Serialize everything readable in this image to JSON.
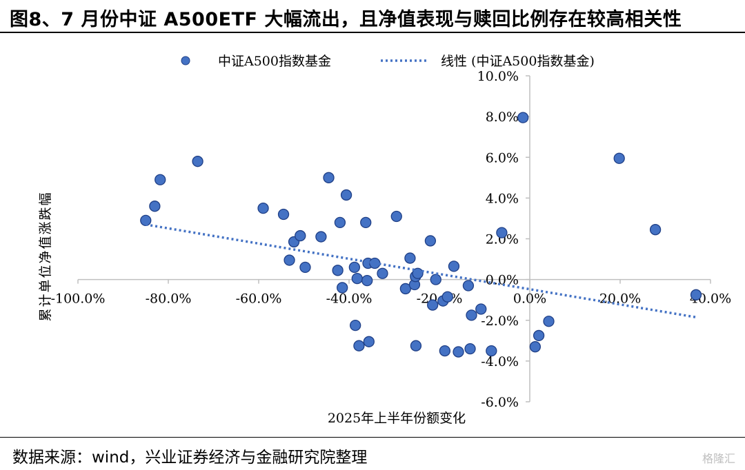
{
  "header": {
    "title": "图8、7 月份中证 A500ETF 大幅流出，且净值表现与赎回比例存在较高相关性"
  },
  "footer": {
    "source": "数据来源：wind，兴业证券经济与金融研究院整理",
    "watermark": "格隆汇"
  },
  "chart_data": {
    "type": "scatter",
    "title": "",
    "xlabel": "2025年上半年份额变化",
    "ylabel": "累计单位净值涨跌幅",
    "xlim": [
      -100,
      40
    ],
    "ylim": [
      -6,
      10
    ],
    "x_ticks": [
      "-100.0%",
      "-80.0%",
      "-60.0%",
      "-40.0%",
      "-20.0%",
      "0.0%",
      "20.0%",
      "40.0%"
    ],
    "y_ticks": [
      "-6.0%",
      "-4.0%",
      "-2.0%",
      "0.0%",
      "2.0%",
      "4.0%",
      "6.0%",
      "8.0%",
      "10.0%"
    ],
    "legend_position": "top",
    "grid": false,
    "colors": {
      "point_fill": "#4472c4",
      "point_stroke": "#1f3f86",
      "trend": "#4472c4"
    },
    "series": [
      {
        "name": "中证A500指数基金",
        "points": [
          {
            "x": -85.0,
            "y": 2.9
          },
          {
            "x": -83.0,
            "y": 3.6
          },
          {
            "x": -81.8,
            "y": 4.9
          },
          {
            "x": -73.5,
            "y": 5.8
          },
          {
            "x": -59.0,
            "y": 3.5
          },
          {
            "x": -54.5,
            "y": 3.2
          },
          {
            "x": -53.2,
            "y": 0.95
          },
          {
            "x": -52.2,
            "y": 1.85
          },
          {
            "x": -50.8,
            "y": 2.15
          },
          {
            "x": -49.7,
            "y": 0.6
          },
          {
            "x": -46.2,
            "y": 2.1
          },
          {
            "x": -44.5,
            "y": 5.0
          },
          {
            "x": -42.5,
            "y": 0.45
          },
          {
            "x": -42.0,
            "y": 2.8
          },
          {
            "x": -41.5,
            "y": -0.4
          },
          {
            "x": -40.6,
            "y": 4.15
          },
          {
            "x": -38.8,
            "y": 0.6
          },
          {
            "x": -38.6,
            "y": -2.25
          },
          {
            "x": -38.2,
            "y": 0.05
          },
          {
            "x": -37.8,
            "y": -3.25
          },
          {
            "x": -36.3,
            "y": 2.8
          },
          {
            "x": -36.0,
            "y": -0.05
          },
          {
            "x": -35.8,
            "y": 0.8
          },
          {
            "x": -35.6,
            "y": -3.05
          },
          {
            "x": -34.3,
            "y": 0.8
          },
          {
            "x": -32.6,
            "y": 0.3
          },
          {
            "x": -29.5,
            "y": 3.1
          },
          {
            "x": -27.5,
            "y": -0.45
          },
          {
            "x": -26.5,
            "y": 1.05
          },
          {
            "x": -25.5,
            "y": -0.25
          },
          {
            "x": -25.3,
            "y": 0.15
          },
          {
            "x": -25.2,
            "y": -3.25
          },
          {
            "x": -24.8,
            "y": 0.3
          },
          {
            "x": -22.0,
            "y": 1.9
          },
          {
            "x": -21.5,
            "y": -1.25
          },
          {
            "x": -20.8,
            "y": 0.0
          },
          {
            "x": -19.2,
            "y": -1.05
          },
          {
            "x": -18.8,
            "y": -3.5
          },
          {
            "x": -18.2,
            "y": -0.85
          },
          {
            "x": -16.8,
            "y": 0.65
          },
          {
            "x": -15.8,
            "y": -3.55
          },
          {
            "x": -13.6,
            "y": -0.3
          },
          {
            "x": -13.2,
            "y": -3.4
          },
          {
            "x": -12.9,
            "y": -1.75
          },
          {
            "x": -10.8,
            "y": -1.45
          },
          {
            "x": -8.5,
            "y": -3.5
          },
          {
            "x": -6.2,
            "y": 2.3
          },
          {
            "x": -1.5,
            "y": 7.95
          },
          {
            "x": 1.2,
            "y": -3.3
          },
          {
            "x": 2.0,
            "y": -2.75
          },
          {
            "x": 4.2,
            "y": -2.05
          },
          {
            "x": 19.8,
            "y": 5.95
          },
          {
            "x": 27.8,
            "y": 2.45
          },
          {
            "x": 36.8,
            "y": -0.75
          }
        ]
      },
      {
        "name": "线性 (中证A500指数基金)",
        "kind": "trendline",
        "points": [
          {
            "x": -85.0,
            "y": 2.7
          },
          {
            "x": 36.8,
            "y": -1.85
          }
        ]
      }
    ]
  }
}
